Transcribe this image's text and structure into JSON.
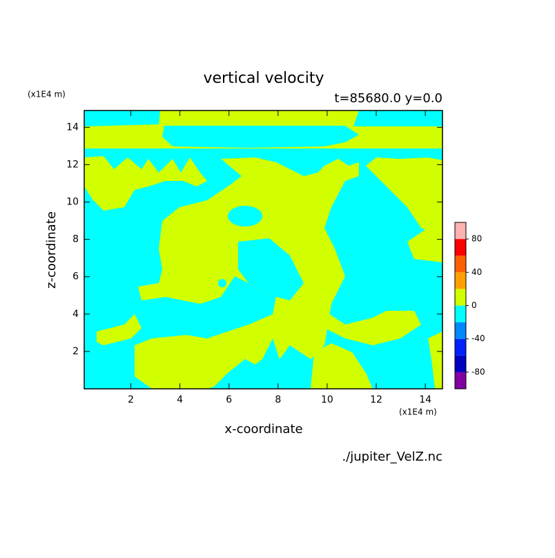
{
  "chart_data": {
    "type": "contour",
    "title": "vertical velocity",
    "subtitle": "t=85680.0 y=0.0",
    "x_label": "x-coordinate",
    "y_label": "z-coordinate",
    "x_unit": "(x1E4 m)",
    "y_unit": "(x1E4 m)",
    "source": "./jupiter_VelZ.nc",
    "xlim": [
      0.1,
      14.7
    ],
    "ylim": [
      0,
      14.9
    ],
    "xticks": [
      2,
      4,
      6,
      8,
      10,
      12,
      14
    ],
    "yticks": [
      2,
      4,
      6,
      8,
      10,
      12,
      14
    ],
    "colorbar": {
      "levels": [
        -100,
        -80,
        -60,
        -40,
        -20,
        0,
        20,
        40,
        60,
        80,
        100
      ],
      "colors": [
        "#8000a0",
        "#0000c0",
        "#0020ff",
        "#0088ff",
        "#00ffff",
        "#d2ff00",
        "#ffa000",
        "#ff6000",
        "#ff0000",
        "#ffb0b0"
      ],
      "ticks": [
        -80,
        -40,
        0,
        40,
        80
      ]
    }
  }
}
